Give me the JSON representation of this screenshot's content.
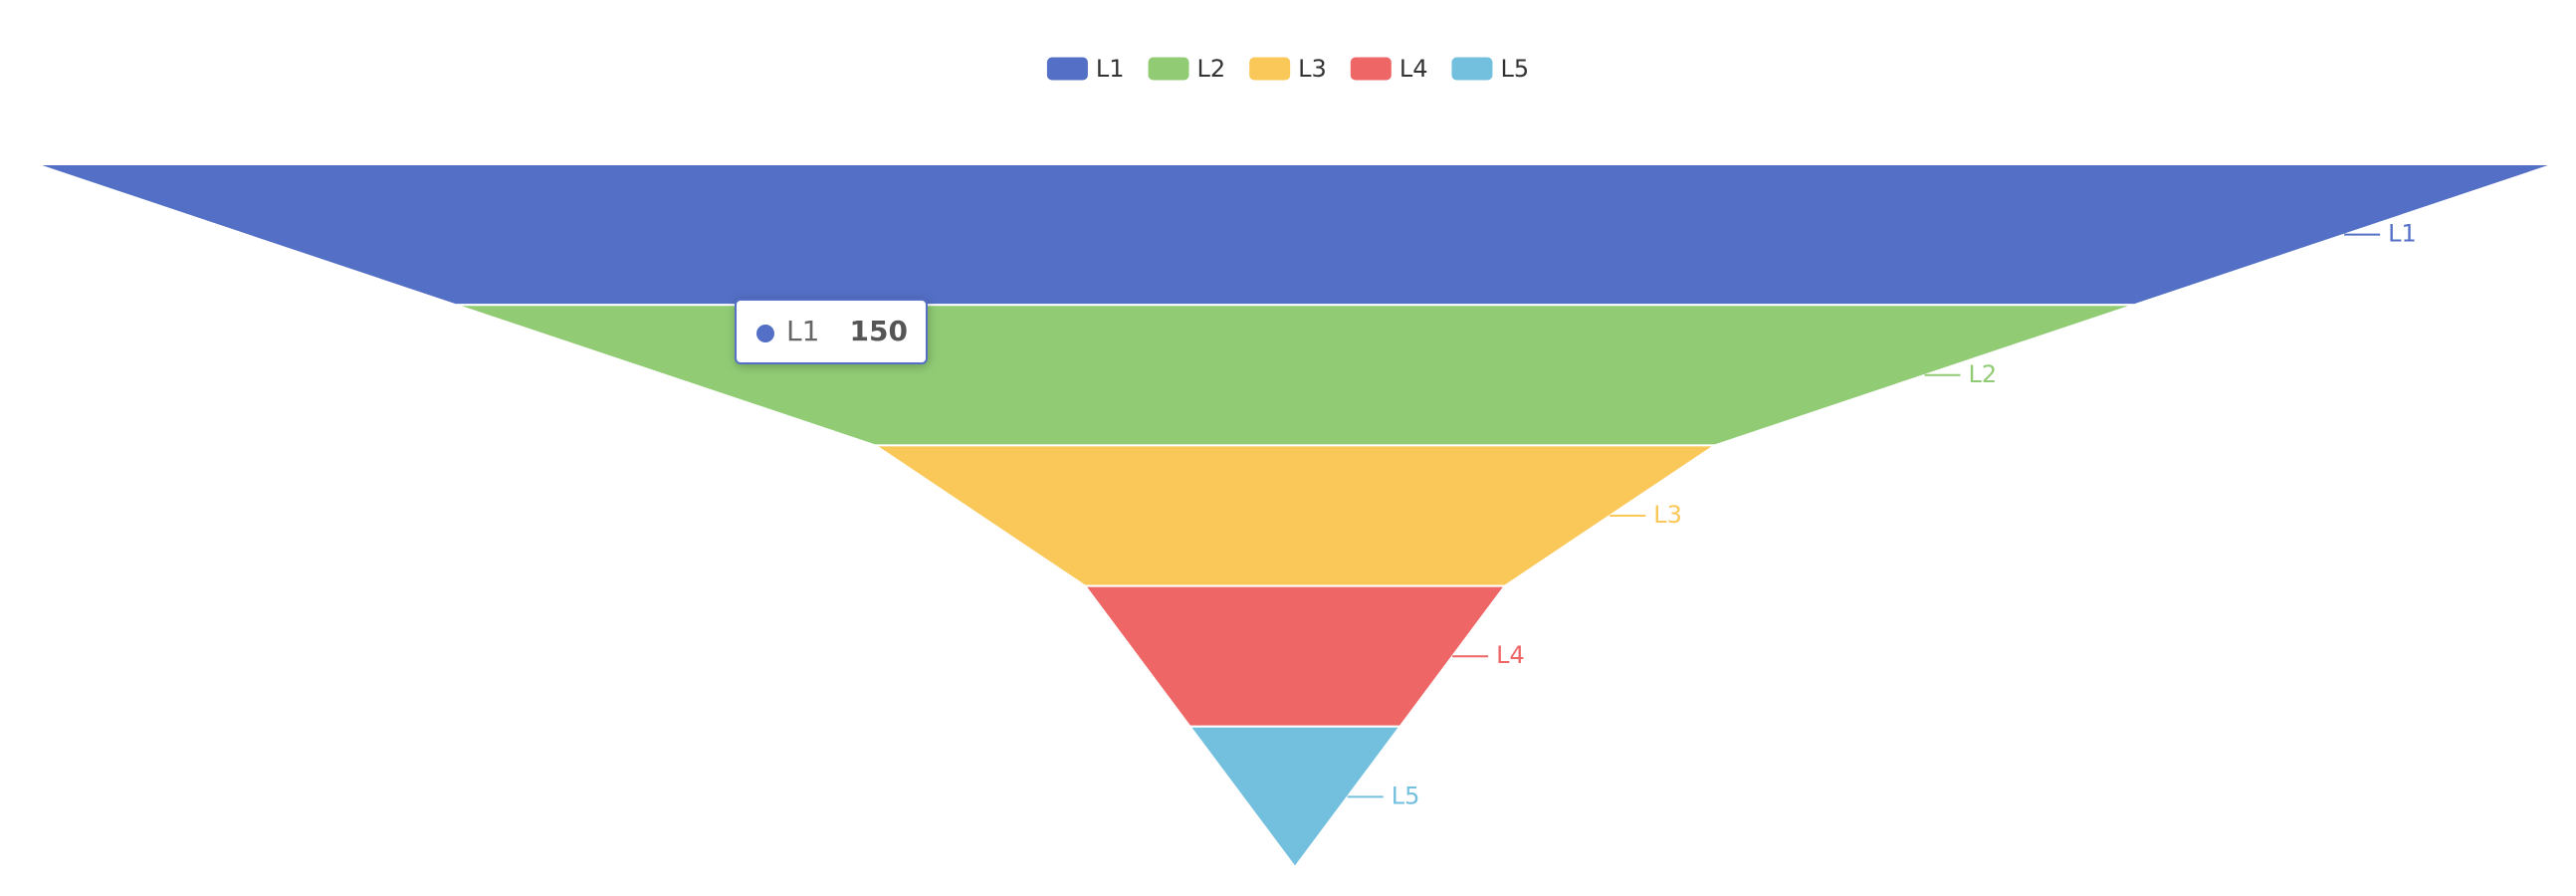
{
  "chart_data": {
    "type": "funnel",
    "categories": [
      "L1",
      "L2",
      "L3",
      "L4",
      "L5"
    ],
    "values": [
      150,
      100,
      50,
      25,
      12.5
    ],
    "colors": [
      "#5470c6",
      "#91cc75",
      "#fac858",
      "#ee6666",
      "#73c0de"
    ],
    "legend": "top"
  }
}
